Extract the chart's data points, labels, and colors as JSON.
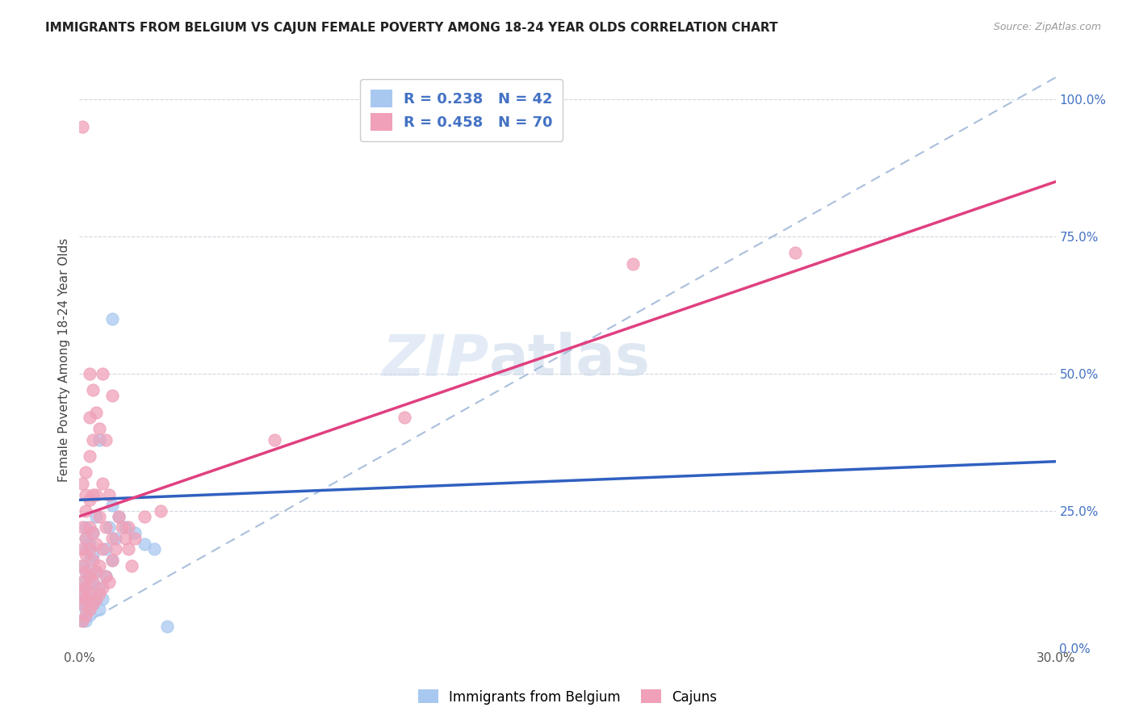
{
  "title": "IMMIGRANTS FROM BELGIUM VS CAJUN FEMALE POVERTY AMONG 18-24 YEAR OLDS CORRELATION CHART",
  "source": "Source: ZipAtlas.com",
  "ylabel": "Female Poverty Among 18-24 Year Olds",
  "x_min": 0.0,
  "x_max": 0.3,
  "y_min": 0.0,
  "y_max": 1.05,
  "x_ticks": [
    0.0,
    0.05,
    0.1,
    0.15,
    0.2,
    0.25,
    0.3
  ],
  "x_tick_labels": [
    "0.0%",
    "",
    "",
    "",
    "",
    "",
    "30.0%"
  ],
  "y_ticks_right": [
    0.0,
    0.25,
    0.5,
    0.75,
    1.0
  ],
  "y_tick_labels_right": [
    "0.0%",
    "25.0%",
    "50.0%",
    "75.0%",
    "100.0%"
  ],
  "color_belgium": "#a8c8f0",
  "color_cajun": "#f0a0b8",
  "color_line_belgium": "#3060c0",
  "color_line_cajun": "#e04080",
  "color_dashed": "#a0b8d8",
  "watermark_zip": "ZIP",
  "watermark_atlas": "atlas",
  "legend_label_belgium": "Immigrants from Belgium",
  "legend_label_cajun": "Cajuns",
  "scatter_belgium": [
    [
      0.001,
      0.05
    ],
    [
      0.001,
      0.08
    ],
    [
      0.001,
      0.1
    ],
    [
      0.001,
      0.12
    ],
    [
      0.001,
      0.15
    ],
    [
      0.002,
      0.05
    ],
    [
      0.002,
      0.07
    ],
    [
      0.002,
      0.09
    ],
    [
      0.002,
      0.11
    ],
    [
      0.002,
      0.14
    ],
    [
      0.002,
      0.18
    ],
    [
      0.002,
      0.2
    ],
    [
      0.002,
      0.22
    ],
    [
      0.003,
      0.06
    ],
    [
      0.003,
      0.1
    ],
    [
      0.003,
      0.13
    ],
    [
      0.003,
      0.16
    ],
    [
      0.003,
      0.19
    ],
    [
      0.004,
      0.08
    ],
    [
      0.004,
      0.12
    ],
    [
      0.004,
      0.17
    ],
    [
      0.004,
      0.21
    ],
    [
      0.005,
      0.09
    ],
    [
      0.005,
      0.14
    ],
    [
      0.005,
      0.24
    ],
    [
      0.006,
      0.07
    ],
    [
      0.006,
      0.11
    ],
    [
      0.006,
      0.38
    ],
    [
      0.007,
      0.09
    ],
    [
      0.008,
      0.13
    ],
    [
      0.008,
      0.18
    ],
    [
      0.009,
      0.22
    ],
    [
      0.01,
      0.16
    ],
    [
      0.01,
      0.26
    ],
    [
      0.01,
      0.6
    ],
    [
      0.011,
      0.2
    ],
    [
      0.012,
      0.24
    ],
    [
      0.014,
      0.22
    ],
    [
      0.017,
      0.21
    ],
    [
      0.02,
      0.19
    ],
    [
      0.023,
      0.18
    ],
    [
      0.027,
      0.04
    ]
  ],
  "scatter_cajun": [
    [
      0.001,
      0.05
    ],
    [
      0.001,
      0.08
    ],
    [
      0.001,
      0.1
    ],
    [
      0.001,
      0.12
    ],
    [
      0.001,
      0.15
    ],
    [
      0.001,
      0.18
    ],
    [
      0.001,
      0.22
    ],
    [
      0.001,
      0.3
    ],
    [
      0.001,
      0.95
    ],
    [
      0.002,
      0.06
    ],
    [
      0.002,
      0.09
    ],
    [
      0.002,
      0.11
    ],
    [
      0.002,
      0.14
    ],
    [
      0.002,
      0.17
    ],
    [
      0.002,
      0.2
    ],
    [
      0.002,
      0.25
    ],
    [
      0.002,
      0.28
    ],
    [
      0.002,
      0.32
    ],
    [
      0.003,
      0.07
    ],
    [
      0.003,
      0.1
    ],
    [
      0.003,
      0.13
    ],
    [
      0.003,
      0.18
    ],
    [
      0.003,
      0.22
    ],
    [
      0.003,
      0.27
    ],
    [
      0.003,
      0.35
    ],
    [
      0.003,
      0.42
    ],
    [
      0.003,
      0.5
    ],
    [
      0.004,
      0.08
    ],
    [
      0.004,
      0.12
    ],
    [
      0.004,
      0.16
    ],
    [
      0.004,
      0.21
    ],
    [
      0.004,
      0.28
    ],
    [
      0.004,
      0.38
    ],
    [
      0.004,
      0.47
    ],
    [
      0.005,
      0.09
    ],
    [
      0.005,
      0.14
    ],
    [
      0.005,
      0.19
    ],
    [
      0.005,
      0.28
    ],
    [
      0.005,
      0.43
    ],
    [
      0.006,
      0.1
    ],
    [
      0.006,
      0.15
    ],
    [
      0.006,
      0.24
    ],
    [
      0.006,
      0.4
    ],
    [
      0.007,
      0.11
    ],
    [
      0.007,
      0.18
    ],
    [
      0.007,
      0.3
    ],
    [
      0.007,
      0.5
    ],
    [
      0.008,
      0.13
    ],
    [
      0.008,
      0.22
    ],
    [
      0.008,
      0.38
    ],
    [
      0.009,
      0.12
    ],
    [
      0.009,
      0.28
    ],
    [
      0.01,
      0.16
    ],
    [
      0.01,
      0.2
    ],
    [
      0.01,
      0.46
    ],
    [
      0.011,
      0.18
    ],
    [
      0.012,
      0.24
    ],
    [
      0.013,
      0.22
    ],
    [
      0.014,
      0.2
    ],
    [
      0.015,
      0.18
    ],
    [
      0.015,
      0.22
    ],
    [
      0.016,
      0.15
    ],
    [
      0.017,
      0.2
    ],
    [
      0.02,
      0.24
    ],
    [
      0.025,
      0.25
    ],
    [
      0.06,
      0.38
    ],
    [
      0.1,
      0.42
    ],
    [
      0.17,
      0.7
    ],
    [
      0.22,
      0.72
    ]
  ]
}
